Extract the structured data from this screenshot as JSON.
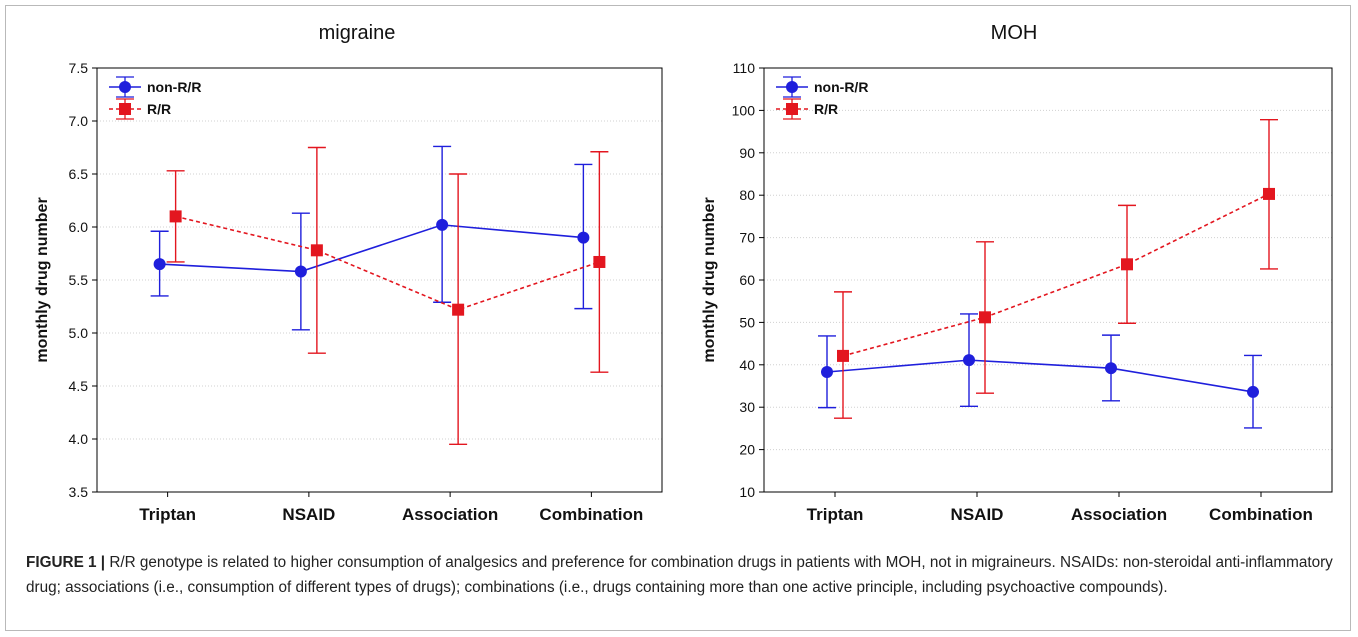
{
  "caption": {
    "label": "FIGURE 1 |",
    "text": " R/R genotype is related to higher consumption of analgesics and preference for combination drugs in patients with MOH, not in migraineurs. NSAIDs: non-steroidal anti-inflammatory drug; associations (i.e., consumption of different types of drugs); combinations (i.e., drugs containing more than one active principle, including psychoactive compounds)."
  },
  "chart_data": [
    {
      "type": "line",
      "title": "migraine",
      "xlabel": "",
      "ylabel": "monthly drug number",
      "categories": [
        "Triptan",
        "NSAID",
        "Association",
        "Combination"
      ],
      "ylim": [
        3.5,
        7.5
      ],
      "yticks": [
        "3.5",
        "4.0",
        "4.5",
        "5.0",
        "5.5",
        "6.0",
        "6.5",
        "7.0",
        "7.5"
      ],
      "grid": true,
      "legend": "top-left",
      "series": [
        {
          "name": "non-R/R",
          "color": "#1f1fdc",
          "marker": "circle",
          "style": "solid",
          "values": [
            5.65,
            5.58,
            6.02,
            5.9
          ],
          "lower": [
            5.35,
            5.03,
            5.29,
            5.23
          ],
          "upper": [
            5.96,
            6.13,
            6.76,
            6.59
          ]
        },
        {
          "name": "R/R",
          "color": "#e3161f",
          "marker": "square",
          "style": "dashed",
          "values": [
            6.1,
            5.78,
            5.22,
            5.67
          ],
          "lower": [
            5.67,
            4.81,
            3.95,
            4.63
          ],
          "upper": [
            6.53,
            6.75,
            6.5,
            6.71
          ]
        }
      ]
    },
    {
      "type": "line",
      "title": "MOH",
      "xlabel": "",
      "ylabel": "monthly drug number",
      "categories": [
        "Triptan",
        "NSAID",
        "Association",
        "Combination"
      ],
      "ylim": [
        10,
        110
      ],
      "yticks": [
        "10",
        "20",
        "30",
        "40",
        "50",
        "60",
        "70",
        "80",
        "90",
        "100",
        "110"
      ],
      "grid": true,
      "legend": "top-left",
      "series": [
        {
          "name": "non-R/R",
          "color": "#1f1fdc",
          "marker": "circle",
          "style": "solid",
          "values": [
            38.3,
            41.1,
            39.2,
            33.6
          ],
          "lower": [
            29.9,
            30.2,
            31.5,
            25.1
          ],
          "upper": [
            46.8,
            52.0,
            47.0,
            42.2
          ]
        },
        {
          "name": "R/R",
          "color": "#e3161f",
          "marker": "square",
          "style": "dashed",
          "values": [
            42.1,
            51.2,
            63.7,
            80.3
          ],
          "lower": [
            27.4,
            33.3,
            49.8,
            62.6
          ],
          "upper": [
            57.2,
            69.0,
            77.6,
            97.8
          ]
        }
      ]
    }
  ]
}
